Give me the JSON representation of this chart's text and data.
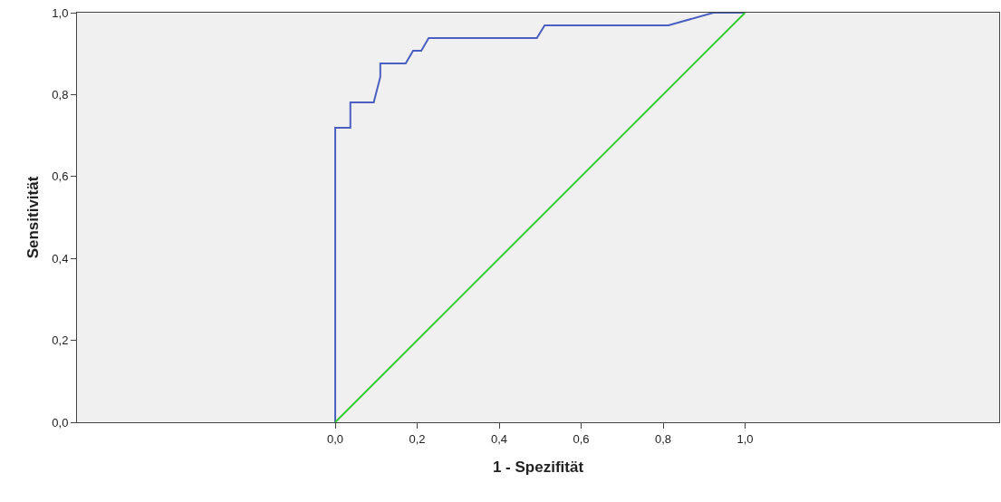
{
  "chart_data": {
    "type": "line",
    "xlabel": "1 - Spezifität",
    "ylabel": "Sensitivität",
    "series": [
      {
        "color": "#4a5fc1",
        "x": [
          0,
          0,
          0.037,
          0.037,
          0.094,
          0.11,
          0.11,
          0.172,
          0.19,
          0.21,
          0.228,
          0.492,
          0.511,
          0.813,
          0.923,
          1.0
        ],
        "values": [
          0,
          0.719,
          0.719,
          0.781,
          0.781,
          0.843,
          0.876,
          0.876,
          0.907,
          0.907,
          0.938,
          0.938,
          0.969,
          0.969,
          1.0,
          1.0
        ]
      },
      {
        "color": "#33cc33",
        "x": [
          0,
          1
        ],
        "values": [
          0,
          1
        ]
      }
    ],
    "xlim": [
      -0.63,
      1.62
    ],
    "ylim": [
      0,
      1
    ],
    "xticks": [
      {
        "value": 0,
        "label": "0,0"
      },
      {
        "value": 0.2,
        "label": "0,2"
      },
      {
        "value": 0.4,
        "label": "0,4"
      },
      {
        "value": 0.6,
        "label": "0,6"
      },
      {
        "value": 0.8,
        "label": "0,8"
      },
      {
        "value": 1.0,
        "label": "1,0"
      }
    ],
    "yticks": [
      {
        "value": 0,
        "label": "0,0"
      },
      {
        "value": 0.2,
        "label": "0,2"
      },
      {
        "value": 0.4,
        "label": "0,4"
      },
      {
        "value": 0.6,
        "label": "0,6"
      },
      {
        "value": 0.8,
        "label": "0,8"
      },
      {
        "value": 1.0,
        "label": "1,0"
      }
    ],
    "grid": false
  }
}
